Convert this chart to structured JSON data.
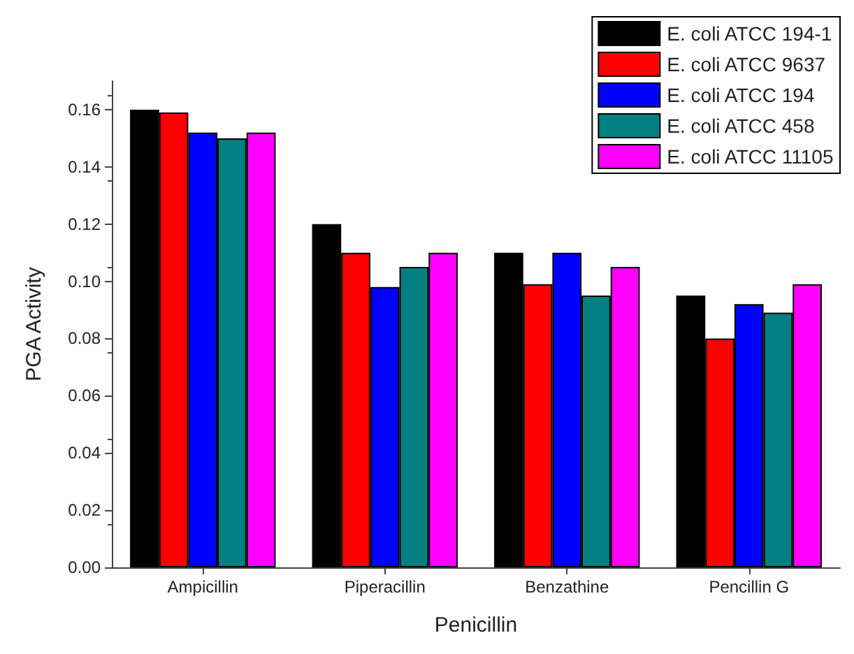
{
  "chart_data": {
    "type": "bar",
    "xlabel": "Penicillin",
    "ylabel": "PGA Activity",
    "categories": [
      "Ampicillin",
      "Piperacillin",
      "Benzathine",
      "Pencillin G"
    ],
    "series": [
      {
        "name": "E. coli ATCC 194-1",
        "color": "#000000",
        "values": [
          0.16,
          0.12,
          0.11,
          0.095
        ]
      },
      {
        "name": "E. coli ATCC 9637",
        "color": "#ff0000",
        "values": [
          0.159,
          0.11,
          0.099,
          0.08
        ]
      },
      {
        "name": "E. coli ATCC 194",
        "color": "#0000ff",
        "values": [
          0.152,
          0.098,
          0.11,
          0.092
        ]
      },
      {
        "name": "E. coli ATCC 458",
        "color": "#008080",
        "values": [
          0.15,
          0.105,
          0.095,
          0.089
        ]
      },
      {
        "name": "E. coli ATCC 11105",
        "color": "#ff00ff",
        "values": [
          0.152,
          0.11,
          0.105,
          0.099
        ]
      }
    ],
    "ylim": [
      0,
      0.17
    ],
    "yticks": [
      {
        "value": 0,
        "label": "0.00"
      },
      0.02,
      0.04,
      0.06,
      0.08,
      {
        "value": 0.1,
        "label": "0.10"
      },
      0.12,
      0.14,
      0.16
    ],
    "grid": false,
    "legend": "top right"
  }
}
